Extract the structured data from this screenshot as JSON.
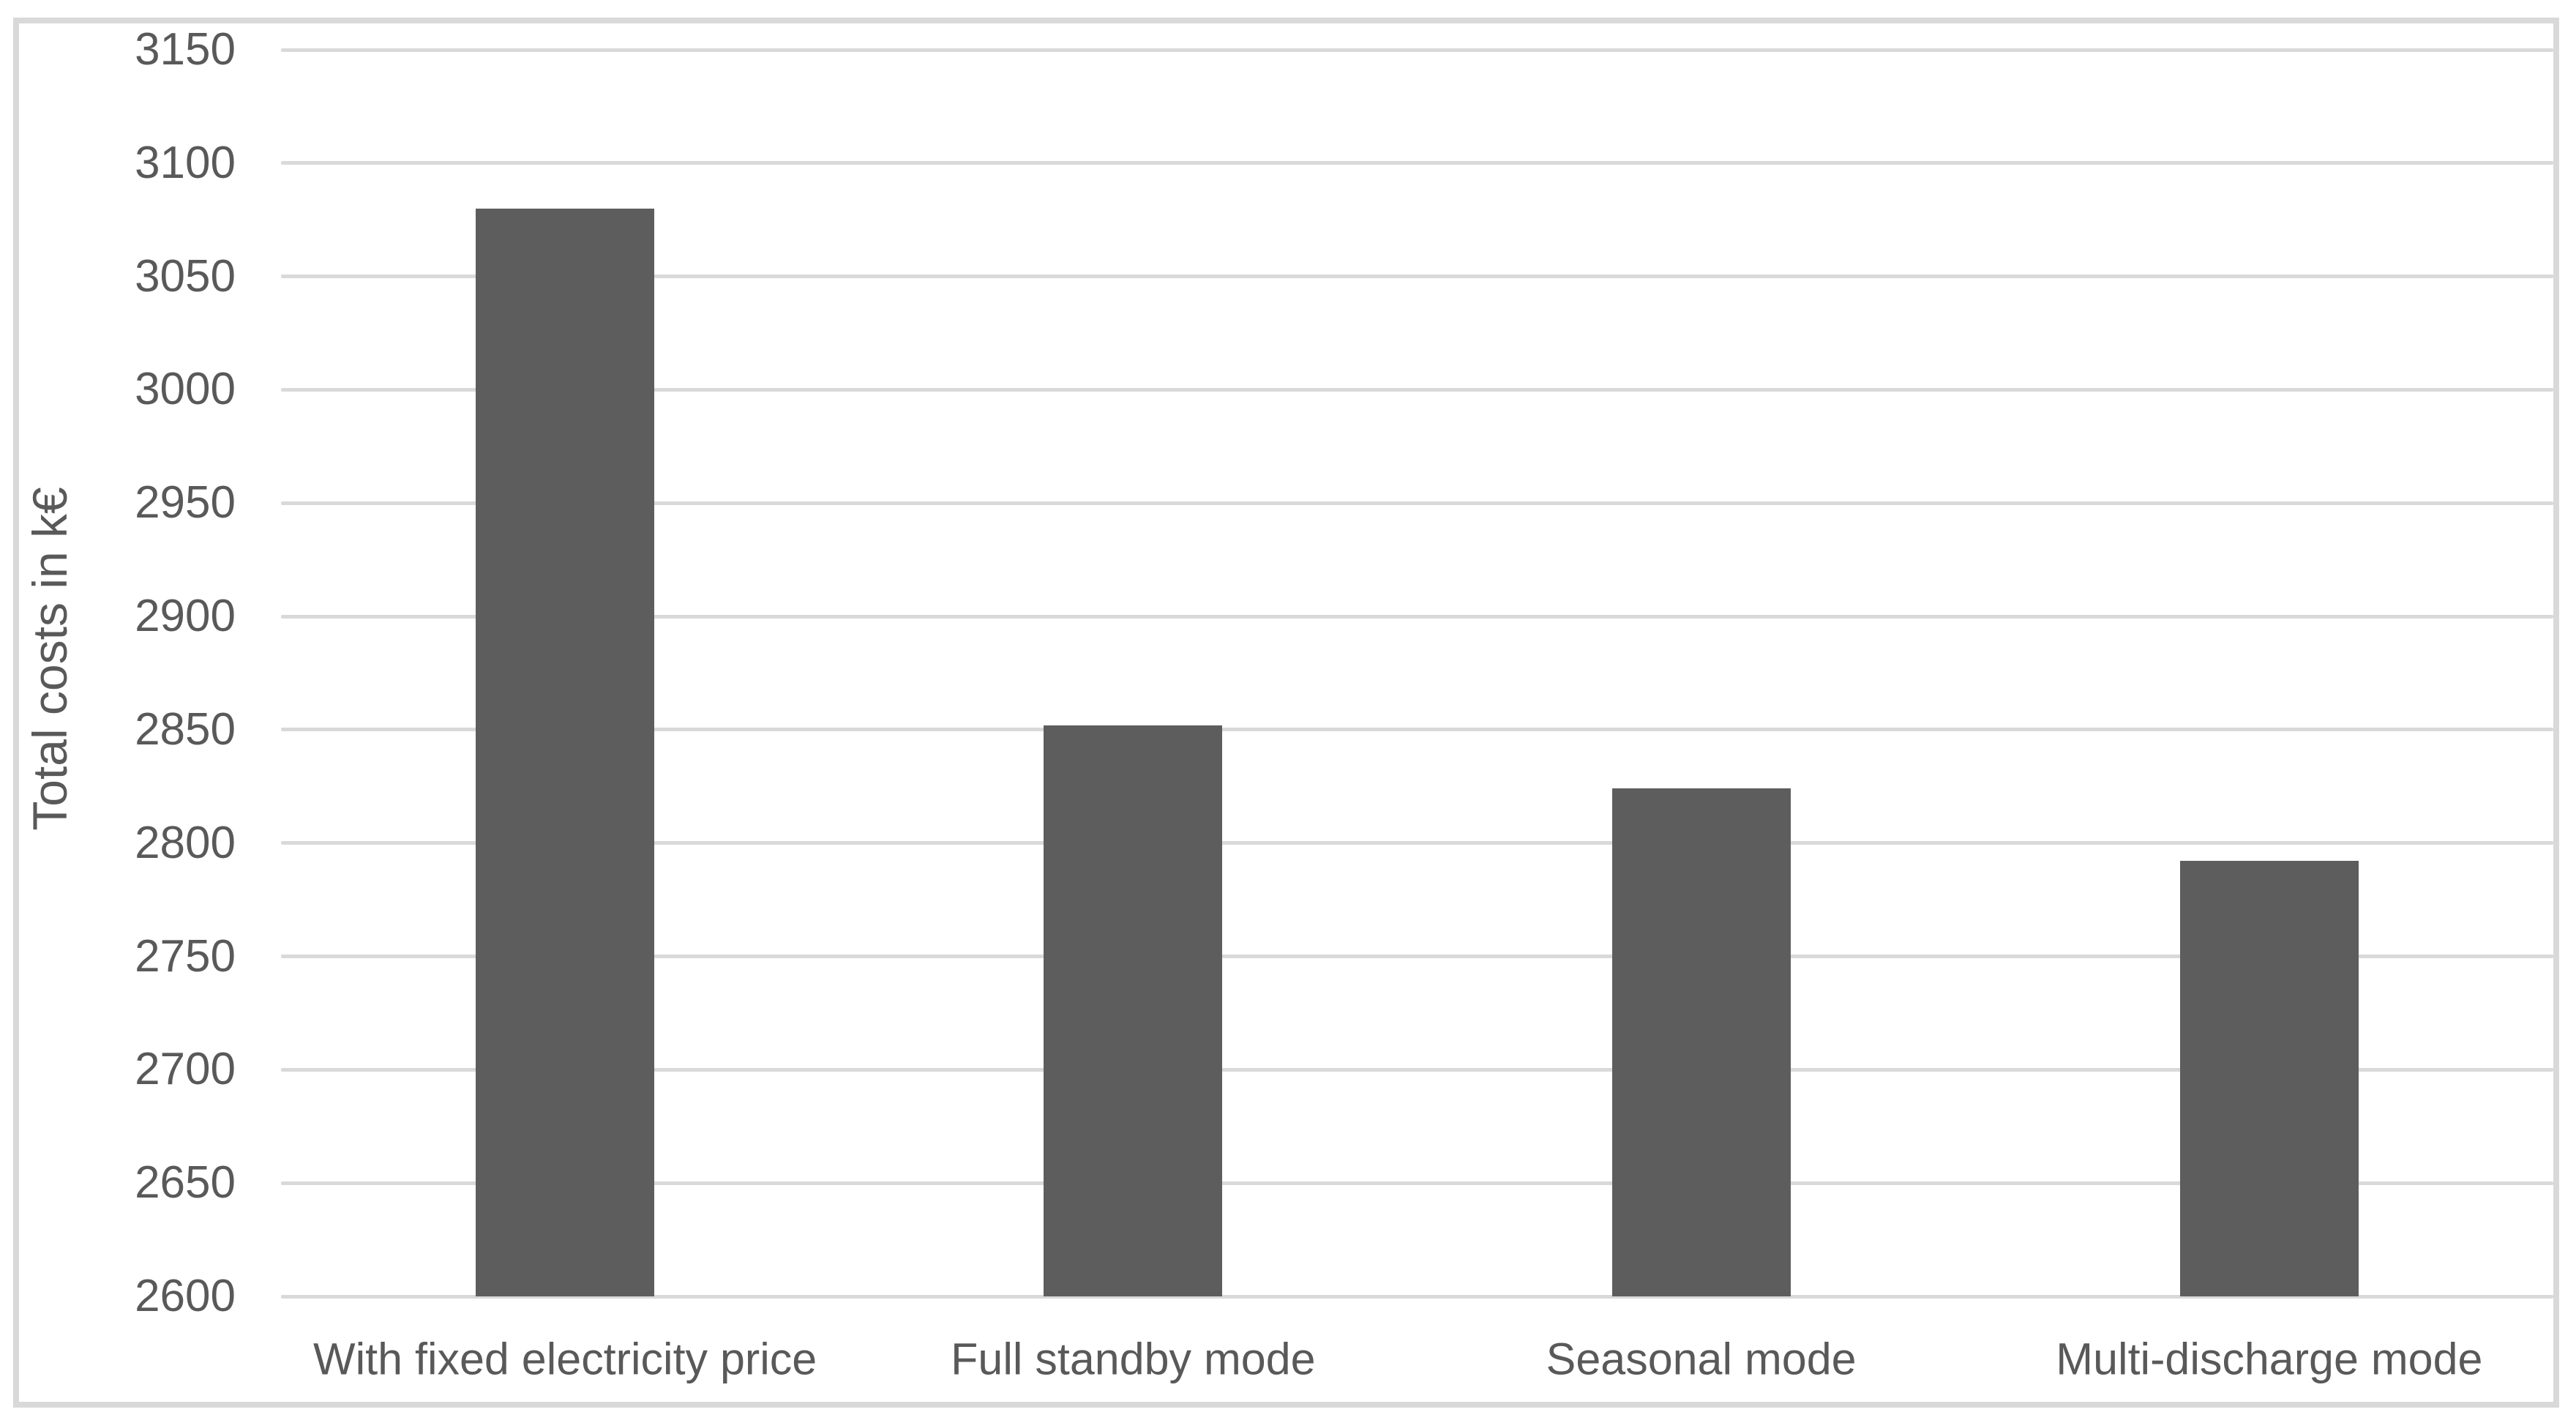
{
  "chart_data": {
    "type": "bar",
    "categories": [
      "With fixed electricity price",
      "Full standby mode",
      "Seasonal mode",
      "Multi-discharge mode"
    ],
    "values": [
      3080,
      2852,
      2824,
      2792
    ],
    "title": "",
    "xlabel": "",
    "ylabel": "Total costs in k€",
    "ylim": [
      2600,
      3150
    ],
    "ytick_step": 50,
    "yticks": [
      3150,
      3100,
      3050,
      3000,
      2950,
      2900,
      2850,
      2800,
      2750,
      2700,
      2650,
      2600
    ],
    "grid": "horizontal",
    "legend": "none",
    "colors": {
      "bar": "#5d5d5d",
      "gridline": "#d9d9d9",
      "frame_border": "#d9d9d9",
      "text": "#595959",
      "background": "#ffffff"
    }
  }
}
